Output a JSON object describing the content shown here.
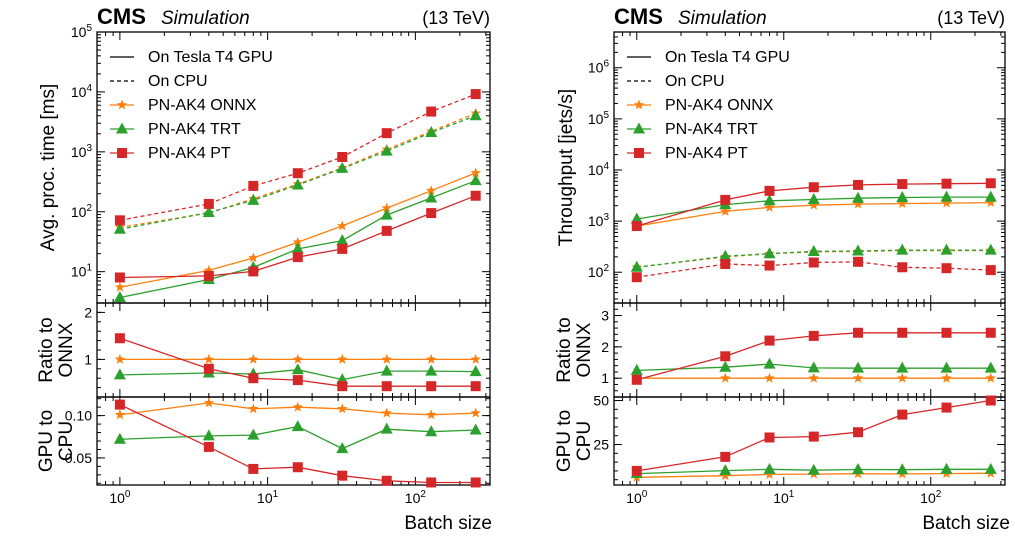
{
  "header": {
    "experiment": "CMS",
    "tag": "Simulation",
    "energy": "(13 TeV)"
  },
  "colors": {
    "onnx": "#ff7f0e",
    "trt": "#2ca02c",
    "pt": "#d62728"
  },
  "legend": {
    "gpu": "On Tesla T4 GPU",
    "cpu": "On CPU",
    "onnx": "PN-AK4 ONNX",
    "trt": "PN-AK4 TRT",
    "pt": "PN-AK4 PT"
  },
  "chart_data": [
    {
      "type": "line",
      "panel": "left",
      "xscale": "log",
      "xlabel": "Batch size",
      "xlim": [
        0.7,
        320
      ],
      "x": [
        1,
        4,
        8,
        16,
        32,
        64,
        128,
        256
      ],
      "subplots": [
        {
          "ylabel": "Avg. proc. time [ms]",
          "yscale": "log",
          "ylim": [
            3,
            100000
          ],
          "series": [
            {
              "name": "PN-AK4 ONNX",
              "device": "GPU",
              "values": [
                5.5,
                10.5,
                17,
                31,
                58,
                115,
                225,
                445
              ]
            },
            {
              "name": "PN-AK4 TRT",
              "device": "GPU",
              "values": [
                3.7,
                7.4,
                11.8,
                24,
                33,
                88,
                170,
                330
              ]
            },
            {
              "name": "PN-AK4 PT",
              "device": "GPU",
              "values": [
                8,
                8.5,
                10.1,
                17.5,
                24,
                48,
                95,
                185
              ]
            },
            {
              "name": "PN-AK4 ONNX",
              "device": "CPU",
              "values": [
                55,
                95,
                165,
                290,
                540,
                1100,
                2200,
                4400
              ]
            },
            {
              "name": "PN-AK4 TRT",
              "device": "CPU",
              "values": [
                51,
                97,
                155,
                280,
                530,
                1030,
                2100,
                4000
              ]
            },
            {
              "name": "PN-AK4 PT",
              "device": "CPU",
              "values": [
                72,
                135,
                270,
                440,
                820,
                2050,
                4700,
                9200
              ]
            }
          ]
        },
        {
          "ylabel": "Ratio to ONNX",
          "ylim": [
            0.2,
            2.2
          ],
          "yticks": [
            1,
            2
          ],
          "series": [
            {
              "name": "PN-AK4 ONNX",
              "values": [
                1,
                1,
                1,
                1,
                1,
                1,
                1,
                1
              ]
            },
            {
              "name": "PN-AK4 TRT",
              "values": [
                0.67,
                0.71,
                0.69,
                0.78,
                0.57,
                0.75,
                0.75,
                0.74
              ]
            },
            {
              "name": "PN-AK4 PT",
              "values": [
                1.45,
                0.8,
                0.6,
                0.56,
                0.43,
                0.43,
                0.43,
                0.43
              ]
            }
          ]
        },
        {
          "ylabel": "GPU to CPU",
          "ylim": [
            0.018,
            0.122
          ],
          "yticks": [
            0.05,
            0.1
          ],
          "yticklabels": [
            "0.05",
            "0.10"
          ],
          "series": [
            {
              "name": "PN-AK4 ONNX",
              "values": [
                0.101,
                0.115,
                0.108,
                0.11,
                0.108,
                0.103,
                0.101,
                0.103
              ]
            },
            {
              "name": "PN-AK4 TRT",
              "values": [
                0.072,
                0.076,
                0.077,
                0.087,
                0.061,
                0.084,
                0.081,
                0.083
              ]
            },
            {
              "name": "PN-AK4 PT",
              "values": [
                0.113,
                0.063,
                0.037,
                0.039,
                0.029,
                0.023,
                0.021,
                0.021
              ]
            }
          ]
        }
      ]
    },
    {
      "type": "line",
      "panel": "right",
      "xscale": "log",
      "xlabel": "Batch size",
      "xlim": [
        0.7,
        320
      ],
      "x": [
        1,
        4,
        8,
        16,
        32,
        64,
        128,
        256
      ],
      "subplots": [
        {
          "ylabel": "Throughput [jets/s]",
          "yscale": "log",
          "ylim": [
            25,
            5000000
          ],
          "series": [
            {
              "name": "PN-AK4 ONNX",
              "device": "GPU",
              "values": [
                800,
                1550,
                1850,
                2050,
                2150,
                2200,
                2250,
                2300
              ]
            },
            {
              "name": "PN-AK4 TRT",
              "device": "GPU",
              "values": [
                1100,
                2100,
                2500,
                2650,
                2800,
                2900,
                2950,
                2950
              ]
            },
            {
              "name": "PN-AK4 PT",
              "device": "GPU",
              "values": [
                800,
                2600,
                3900,
                4600,
                5100,
                5300,
                5400,
                5500
              ]
            },
            {
              "name": "PN-AK4 ONNX",
              "device": "CPU",
              "values": [
                125,
                200,
                230,
                250,
                255,
                265,
                265,
                265
              ]
            },
            {
              "name": "PN-AK4 TRT",
              "device": "CPU",
              "values": [
                125,
                205,
                230,
                255,
                260,
                270,
                270,
                270
              ]
            },
            {
              "name": "PN-AK4 PT",
              "device": "CPU",
              "values": [
                80,
                145,
                135,
                155,
                160,
                125,
                120,
                110
              ]
            }
          ]
        },
        {
          "ylabel": "Ratio to ONNX",
          "ylim": [
            0.4,
            3.4
          ],
          "yticks": [
            1,
            2,
            3
          ],
          "series": [
            {
              "name": "PN-AK4 ONNX",
              "values": [
                1,
                1,
                1,
                1,
                1,
                1,
                1,
                1
              ]
            },
            {
              "name": "PN-AK4 TRT",
              "values": [
                1.25,
                1.35,
                1.45,
                1.33,
                1.32,
                1.32,
                1.32,
                1.32
              ]
            },
            {
              "name": "PN-AK4 PT",
              "values": [
                0.95,
                1.7,
                2.2,
                2.35,
                2.45,
                2.45,
                2.45,
                2.45
              ]
            }
          ]
        },
        {
          "ylabel": "GPU to CPU",
          "ylim": [
            2,
            52
          ],
          "yticks": [
            25,
            50
          ],
          "series": [
            {
              "name": "PN-AK4 ONNX",
              "values": [
                6.4,
                7.3,
                8,
                8.2,
                8.4,
                8.3,
                8.5,
                8.7
              ]
            },
            {
              "name": "PN-AK4 TRT",
              "values": [
                8.5,
                10.2,
                10.9,
                10.4,
                10.8,
                10.7,
                10.9,
                10.9
              ]
            },
            {
              "name": "PN-AK4 PT",
              "values": [
                10,
                18,
                29,
                29.5,
                32,
                42,
                46,
                50
              ]
            }
          ]
        }
      ]
    }
  ]
}
